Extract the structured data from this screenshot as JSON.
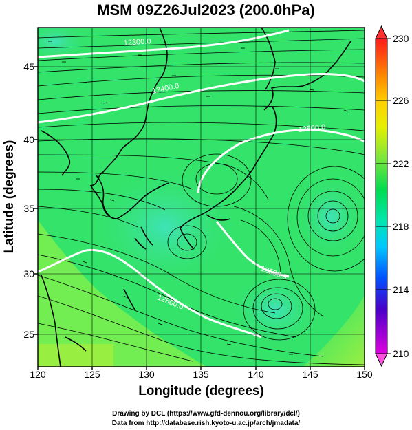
{
  "title": "MSM 09Z26Jul2023 (200.0hPa)",
  "x_axis": {
    "label": "Longitude (degrees)",
    "ticks": [
      "120",
      "125",
      "130",
      "135",
      "140",
      "145",
      "150"
    ]
  },
  "y_axis": {
    "label": "Latitude  (degrees)",
    "ticks": [
      "25",
      "30",
      "35",
      "40",
      "45"
    ]
  },
  "colorbar": {
    "ticks": [
      "230",
      "226",
      "222",
      "218",
      "214",
      "210"
    ]
  },
  "contour_labels": [
    "12300.0",
    "12400.0",
    "12500.0",
    "12500.0",
    "12500.0"
  ],
  "credits": {
    "line1": "Drawing by DCL (https://www.gfd-dennou.org/library/dcl/)",
    "line2": "Data from http://database.rish.kyoto-u.ac.jp/arch/jmadata/"
  },
  "colors": {
    "field_main": "#33e36a",
    "field_light": "#7ef04e",
    "field_cyan": "#3fe3a6",
    "contour": "#ffffff",
    "vectors": "#000000"
  }
}
